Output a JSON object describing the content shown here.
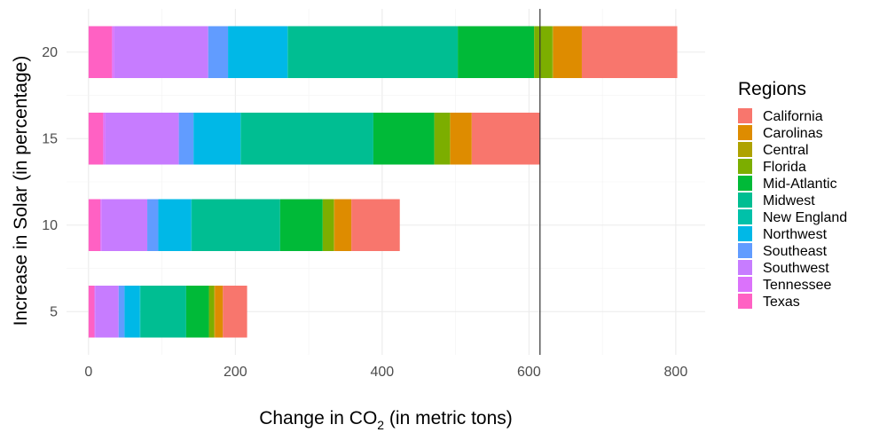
{
  "chart_data": {
    "type": "bar",
    "orientation": "horizontal",
    "stacked": true,
    "xlabel_main": "Change in CO",
    "xlabel_sub": "2",
    "xlabel_tail": " (in metric tons)",
    "ylabel": "Increase in Solar (in percentage)",
    "xlim": [
      -30,
      840
    ],
    "ylim": [
      2.5,
      22.5
    ],
    "x_ticks": [
      0,
      200,
      400,
      600,
      800
    ],
    "y_ticks": [
      5,
      10,
      15,
      20
    ],
    "x_ticks_labels": [
      "0",
      "200",
      "400",
      "600",
      "800"
    ],
    "y_ticks_labels": [
      "5",
      "10",
      "15",
      "20"
    ],
    "grid": true,
    "bar_height": 3,
    "reference_line_x": 615,
    "categories": [
      5,
      10,
      15,
      20
    ],
    "legend": {
      "title": "Regions",
      "placement": "right"
    },
    "series": [
      {
        "name": "Texas",
        "color": "#FF61C3",
        "values": [
          8,
          16,
          20,
          32
        ]
      },
      {
        "name": "Tennessee",
        "color": "#DB72FB",
        "values": [
          1,
          2,
          3,
          3
        ]
      },
      {
        "name": "Southwest",
        "color": "#C77CFF",
        "values": [
          32,
          62,
          100,
          128
        ]
      },
      {
        "name": "Southeast",
        "color": "#619CFF",
        "values": [
          8,
          15,
          20,
          27
        ]
      },
      {
        "name": "Northwest",
        "color": "#00B8E7",
        "values": [
          21,
          45,
          64,
          81
        ]
      },
      {
        "name": "New England",
        "color": "#00C1A9",
        "values": [
          1,
          1,
          1,
          1
        ]
      },
      {
        "name": "Midwest",
        "color": "#00BE92",
        "values": [
          62,
          120,
          180,
          231
        ]
      },
      {
        "name": "Mid-Atlantic",
        "color": "#00BA38",
        "values": [
          31,
          58,
          83,
          104
        ]
      },
      {
        "name": "Florida",
        "color": "#7CAE00",
        "values": [
          7,
          15,
          21,
          25
        ]
      },
      {
        "name": "Central",
        "color": "#AEA200",
        "values": [
          1,
          1,
          1,
          1
        ]
      },
      {
        "name": "Carolinas",
        "color": "#DE8C00",
        "values": [
          11,
          23,
          29,
          39
        ]
      },
      {
        "name": "California",
        "color": "#F8766D",
        "values": [
          33,
          66,
          93,
          130
        ]
      }
    ],
    "legend_order": [
      "California",
      "Carolinas",
      "Central",
      "Florida",
      "Mid-Atlantic",
      "Midwest",
      "New England",
      "Northwest",
      "Southeast",
      "Southwest",
      "Tennessee",
      "Texas"
    ]
  }
}
